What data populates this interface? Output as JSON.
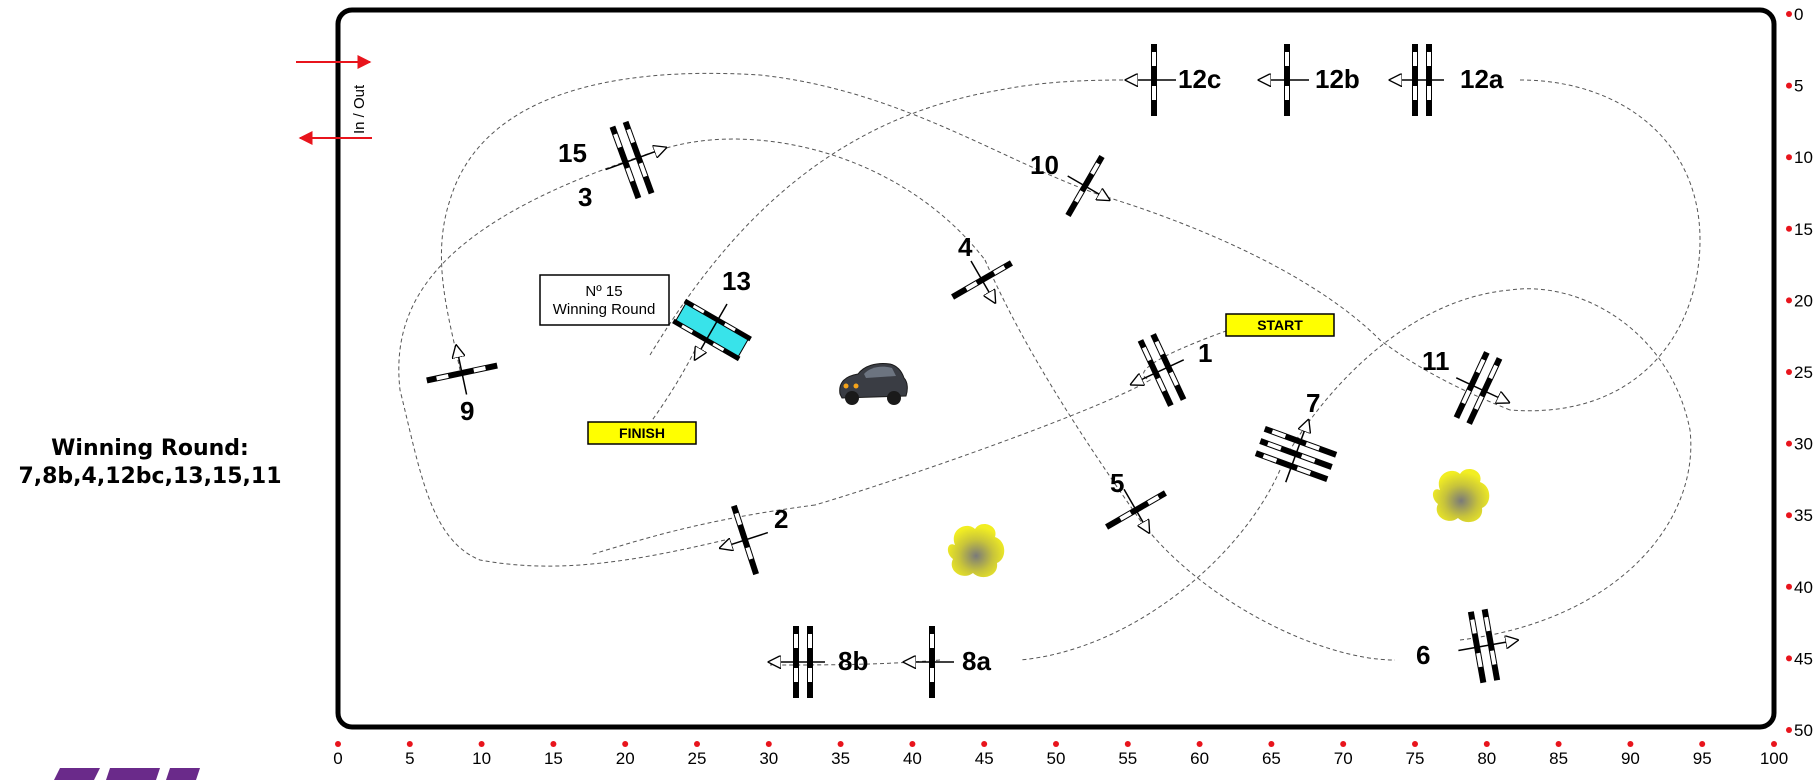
{
  "course": {
    "entry_label": "In / Out",
    "start_label": "START",
    "finish_label": "FINISH",
    "round_box_line1": "Nº 15",
    "round_box_line2": "Winning Round",
    "winning_round_title": "Winning Round:",
    "winning_round_sequence": "7,8b,4,12bc,13,15,11",
    "colors": {
      "border": "#000000",
      "arrow_red": "#e8141c",
      "tick_red": "#e8141c",
      "start_finish_fill": "#ffff00",
      "water_jump": "#38e3ea",
      "bush": "#e6e21a",
      "logo_purple": "#6a2a8a"
    },
    "x_axis_labels": [
      "0",
      "5",
      "10",
      "15",
      "20",
      "25",
      "30",
      "35",
      "40",
      "45",
      "50",
      "55",
      "60",
      "65",
      "70",
      "75",
      "80",
      "85",
      "90",
      "95",
      "100"
    ],
    "y_axis_labels": [
      "0",
      "5",
      "10",
      "15",
      "20",
      "25",
      "30",
      "35",
      "40",
      "45",
      "50"
    ],
    "obstacle_numbers": {
      "n1": "1",
      "n2": "2",
      "n3": "3",
      "n4": "4",
      "n5": "5",
      "n6": "6",
      "n7": "7",
      "n8a": "8a",
      "n8b": "8b",
      "n9": "9",
      "n10": "10",
      "n11": "11",
      "n12a": "12a",
      "n12b": "12b",
      "n12c": "12c",
      "n13": "13",
      "n15": "15"
    },
    "icons": [
      "car-icon",
      "bush-icon",
      "entry-arrow-icon",
      "exit-arrow-icon"
    ]
  }
}
